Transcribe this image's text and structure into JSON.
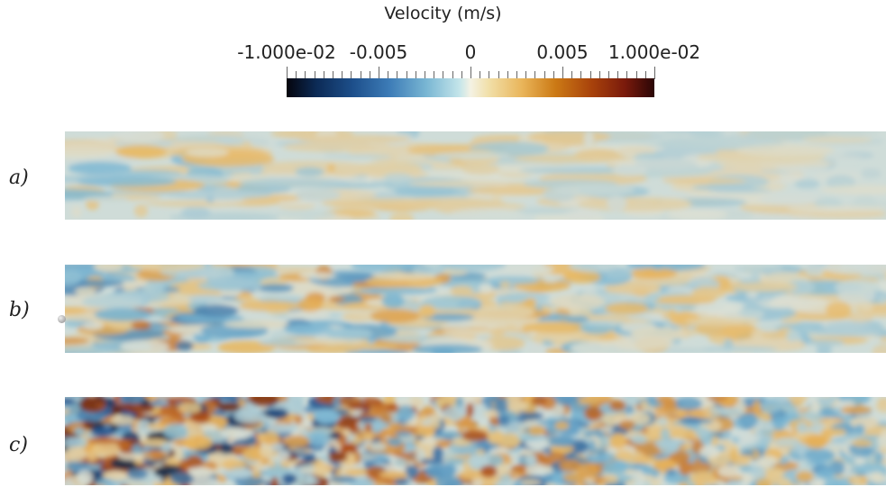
{
  "legend": {
    "title": "Velocity (m/s)",
    "tick_labels": [
      "-1.000e-02",
      "-0.005",
      "0",
      "0.005",
      "1.000e-02"
    ],
    "range": [
      -0.01,
      0.01
    ],
    "colormap_stops": [
      "#05050d",
      "#1d4f8b",
      "#79b6d3",
      "#f4f2e4",
      "#e9b55a",
      "#a8420b",
      "#2a0606"
    ]
  },
  "panels": [
    {
      "label": "a)",
      "intensity": 0.35
    },
    {
      "label": "b)",
      "intensity": 0.6
    },
    {
      "label": "c)",
      "intensity": 0.95
    }
  ]
}
